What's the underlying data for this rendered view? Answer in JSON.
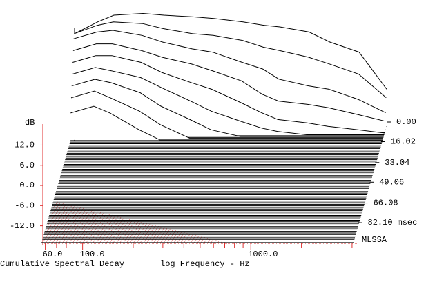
{
  "chart_data": {
    "type": "waterfall",
    "title": "Cumulative Spectral Decay",
    "xlabel": "log Frequency - Hz",
    "ylabel": "dB",
    "time_unit": "msec",
    "brand": "MLSSA",
    "x": [
      58,
      80,
      100,
      150,
      200,
      300,
      400,
      600,
      800,
      1000,
      1500,
      2000,
      3000,
      4400
    ],
    "xlim": [
      58,
      4400
    ],
    "log_x": true,
    "xticks": [
      {
        "value": 60,
        "label": "60.0"
      },
      {
        "value": 100,
        "label": "100.0"
      },
      {
        "value": 1000,
        "label": "1000.0"
      }
    ],
    "xminor_ticks": [
      70,
      80,
      90,
      200,
      300,
      400,
      500,
      600,
      700,
      800,
      900,
      2000,
      3000,
      4000
    ],
    "ylim": [
      -17,
      17
    ],
    "yticks": [
      {
        "value": 12,
        "label": "12.0"
      },
      {
        "value": 6,
        "label": "6.0"
      },
      {
        "value": 0,
        "label": "0.0"
      },
      {
        "value": -6,
        "label": "-6.0"
      },
      {
        "value": -12,
        "label": "-12.0"
      }
    ],
    "tlim": [
      0,
      95
    ],
    "tticks": [
      {
        "value": 0,
        "label": "0.00"
      },
      16.02,
      33.04,
      49.06,
      66.08,
      {
        "value": 82.1,
        "label": "82.10"
      }
    ],
    "color": "#000000",
    "floor_color": "#000000",
    "accent_color": "#e03030",
    "brand_color": "#33dd33",
    "series": [
      {
        "time": 0,
        "values": [
          10.5,
          14,
          16,
          16.5,
          16,
          15.5,
          15,
          14,
          13,
          12.5,
          11,
          8,
          5,
          -6
        ]
      },
      {
        "time": 1.4,
        "values": [
          11,
          13.5,
          14.5,
          14,
          12.5,
          11,
          10.5,
          9,
          7,
          6,
          4,
          2,
          -1,
          -8
        ]
      },
      {
        "time": 2.8,
        "values": [
          10,
          12,
          12.5,
          11,
          9,
          7,
          6,
          3,
          1,
          -2,
          -4,
          -5,
          -8,
          -12
        ]
      },
      {
        "time": 4.2,
        "values": [
          7,
          9,
          9,
          7,
          5,
          3,
          1,
          -2,
          -6,
          -8,
          -9,
          -10,
          -12,
          -14
        ]
      },
      {
        "time": 5.6,
        "values": [
          4,
          6,
          6,
          4,
          1,
          -2,
          -4,
          -8,
          -11,
          -13,
          -14,
          -15,
          -16,
          -17
        ]
      },
      {
        "time": 7,
        "values": [
          1,
          3,
          2,
          0,
          -3,
          -7,
          -10,
          -13,
          -15,
          -16,
          -17,
          -17,
          -17,
          -17
        ]
      },
      {
        "time": 8.4,
        "values": [
          -2,
          0,
          -1,
          -4,
          -8,
          -12,
          -15,
          -17,
          -17,
          -17,
          -17,
          -17,
          -17,
          -17
        ]
      },
      {
        "time": 9.8,
        "values": [
          -5,
          -3,
          -5,
          -9,
          -13,
          -17,
          -17,
          -17,
          -17,
          -17,
          -17,
          -17,
          -17,
          -17
        ]
      },
      {
        "time": 11.2,
        "values": [
          -9,
          -7,
          -9,
          -14,
          -17,
          -17,
          -17,
          -17,
          -17,
          -17,
          -17,
          -17,
          -17,
          -17
        ]
      }
    ]
  }
}
